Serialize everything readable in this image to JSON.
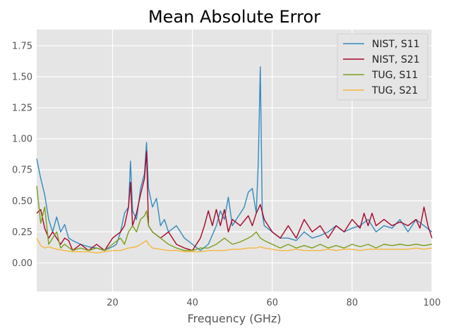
{
  "chart_data": {
    "type": "line",
    "title": "Mean Absolute Error",
    "xlabel": "Frequency (GHz)",
    "ylabel": "",
    "xlim": [
      1,
      100
    ],
    "ylim": [
      -0.23,
      1.88
    ],
    "x_ticks": [
      20,
      40,
      60,
      80,
      100
    ],
    "y_ticks": [
      0.0,
      0.25,
      0.5,
      0.75,
      1.0,
      1.25,
      1.5,
      1.75
    ],
    "x_tick_labels": [
      "20",
      "40",
      "60",
      "80",
      "100"
    ],
    "y_tick_labels": [
      "0.00",
      "0.25",
      "0.50",
      "0.75",
      "1.00",
      "1.25",
      "1.50",
      "1.75"
    ],
    "grid": true,
    "legend_position": "top-right",
    "series": [
      {
        "name": "NIST, S11",
        "color": "#348ABD",
        "x": [
          1,
          2,
          3,
          4,
          5,
          6,
          7,
          8,
          9,
          10,
          12,
          14,
          16,
          18,
          20,
          21,
          22,
          23,
          24,
          24.5,
          25,
          26,
          27,
          28,
          28.5,
          29,
          30,
          31,
          32,
          33,
          34,
          36,
          38,
          40,
          42,
          44,
          46,
          47,
          48,
          49,
          50,
          51,
          52,
          53,
          54,
          55,
          56,
          56.5,
          57,
          57.5,
          58,
          60,
          62,
          64,
          66,
          68,
          70,
          72,
          74,
          76,
          78,
          80,
          82,
          84,
          86,
          88,
          90,
          92,
          94,
          96,
          98,
          100
        ],
        "values": [
          0.84,
          0.68,
          0.55,
          0.35,
          0.25,
          0.37,
          0.25,
          0.31,
          0.2,
          0.18,
          0.15,
          0.13,
          0.12,
          0.1,
          0.13,
          0.15,
          0.25,
          0.4,
          0.45,
          0.82,
          0.42,
          0.35,
          0.6,
          0.72,
          0.97,
          0.6,
          0.45,
          0.52,
          0.3,
          0.35,
          0.25,
          0.3,
          0.2,
          0.15,
          0.1,
          0.15,
          0.3,
          0.42,
          0.35,
          0.53,
          0.3,
          0.35,
          0.4,
          0.45,
          0.57,
          0.6,
          0.4,
          0.8,
          1.58,
          0.4,
          0.3,
          0.25,
          0.2,
          0.2,
          0.18,
          0.25,
          0.2,
          0.22,
          0.25,
          0.3,
          0.25,
          0.28,
          0.3,
          0.35,
          0.25,
          0.3,
          0.28,
          0.35,
          0.25,
          0.35,
          0.3,
          0.25
        ]
      },
      {
        "name": "NIST, S21",
        "color": "#A60628",
        "x": [
          1,
          2,
          3,
          4,
          5,
          6,
          7,
          8,
          9,
          10,
          12,
          14,
          16,
          18,
          20,
          22,
          23,
          24,
          24.5,
          25,
          26,
          27,
          28,
          28.5,
          29,
          30,
          32,
          34,
          36,
          38,
          40,
          42,
          43,
          44,
          45,
          46,
          47,
          48,
          49,
          50,
          52,
          54,
          55,
          56,
          57,
          58,
          59,
          60,
          62,
          64,
          66,
          68,
          70,
          72,
          74,
          76,
          78,
          80,
          82,
          83,
          84,
          85,
          86,
          88,
          90,
          92,
          94,
          96,
          97,
          98,
          99,
          100
        ],
        "values": [
          0.4,
          0.43,
          0.28,
          0.2,
          0.25,
          0.2,
          0.15,
          0.2,
          0.18,
          0.1,
          0.15,
          0.1,
          0.15,
          0.1,
          0.2,
          0.25,
          0.3,
          0.45,
          0.65,
          0.3,
          0.4,
          0.55,
          0.68,
          0.9,
          0.3,
          0.25,
          0.2,
          0.25,
          0.15,
          0.12,
          0.1,
          0.2,
          0.3,
          0.42,
          0.3,
          0.43,
          0.3,
          0.43,
          0.25,
          0.35,
          0.3,
          0.38,
          0.3,
          0.4,
          0.47,
          0.35,
          0.3,
          0.25,
          0.2,
          0.3,
          0.2,
          0.35,
          0.25,
          0.3,
          0.2,
          0.3,
          0.25,
          0.35,
          0.28,
          0.4,
          0.3,
          0.4,
          0.3,
          0.35,
          0.3,
          0.33,
          0.3,
          0.35,
          0.28,
          0.45,
          0.3,
          0.2
        ]
      },
      {
        "name": "TUG, S11",
        "color": "#7A9E1A",
        "x": [
          1,
          2,
          3,
          4,
          5,
          6,
          7,
          8,
          10,
          12,
          14,
          16,
          18,
          20,
          22,
          23,
          24,
          25,
          26,
          27,
          28,
          28.5,
          29,
          30,
          32,
          34,
          36,
          38,
          40,
          42,
          44,
          46,
          48,
          50,
          52,
          54,
          55,
          56,
          57,
          58,
          60,
          62,
          64,
          66,
          68,
          70,
          72,
          74,
          76,
          78,
          80,
          82,
          84,
          86,
          88,
          90,
          92,
          94,
          96,
          98,
          100
        ],
        "values": [
          0.62,
          0.32,
          0.45,
          0.15,
          0.2,
          0.25,
          0.12,
          0.15,
          0.1,
          0.12,
          0.1,
          0.12,
          0.1,
          0.15,
          0.2,
          0.15,
          0.25,
          0.3,
          0.25,
          0.35,
          0.38,
          0.42,
          0.3,
          0.25,
          0.2,
          0.15,
          0.12,
          0.1,
          0.1,
          0.12,
          0.12,
          0.15,
          0.2,
          0.15,
          0.17,
          0.2,
          0.22,
          0.25,
          0.2,
          0.18,
          0.15,
          0.12,
          0.15,
          0.12,
          0.14,
          0.12,
          0.15,
          0.12,
          0.14,
          0.12,
          0.15,
          0.13,
          0.15,
          0.12,
          0.15,
          0.14,
          0.15,
          0.14,
          0.15,
          0.14,
          0.15
        ]
      },
      {
        "name": "TUG, S21",
        "color": "#F5B73C",
        "x": [
          1,
          2,
          3,
          4,
          5,
          6,
          8,
          10,
          12,
          14,
          16,
          18,
          20,
          22,
          24,
          26,
          27,
          28,
          28.5,
          29,
          30,
          32,
          34,
          36,
          38,
          40,
          42,
          44,
          46,
          48,
          50,
          52,
          54,
          56,
          57,
          58,
          60,
          62,
          64,
          66,
          68,
          70,
          72,
          74,
          76,
          78,
          80,
          82,
          84,
          86,
          88,
          90,
          92,
          94,
          96,
          98,
          100
        ],
        "values": [
          0.2,
          0.14,
          0.12,
          0.13,
          0.12,
          0.11,
          0.1,
          0.09,
          0.09,
          0.09,
          0.08,
          0.09,
          0.1,
          0.1,
          0.12,
          0.13,
          0.15,
          0.17,
          0.18,
          0.15,
          0.12,
          0.11,
          0.1,
          0.1,
          0.09,
          0.09,
          0.09,
          0.1,
          0.1,
          0.1,
          0.11,
          0.11,
          0.12,
          0.12,
          0.13,
          0.12,
          0.11,
          0.1,
          0.1,
          0.11,
          0.1,
          0.1,
          0.1,
          0.11,
          0.1,
          0.11,
          0.11,
          0.1,
          0.11,
          0.11,
          0.11,
          0.11,
          0.11,
          0.11,
          0.12,
          0.11,
          0.12
        ]
      }
    ]
  }
}
